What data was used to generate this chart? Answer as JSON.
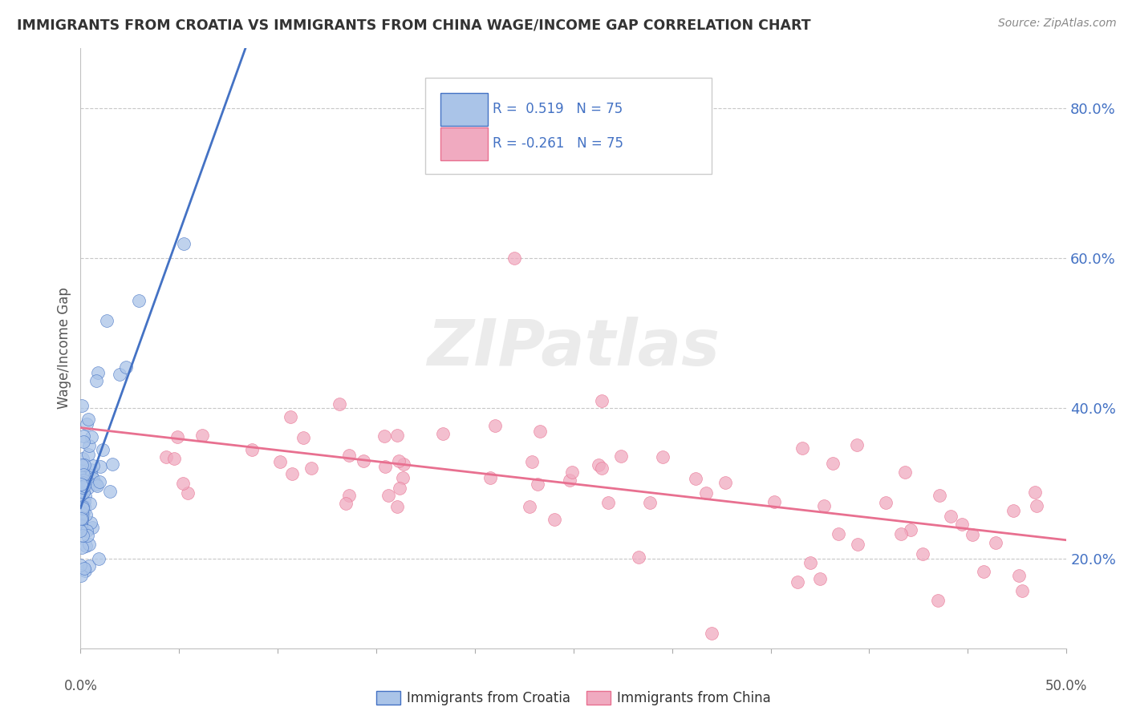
{
  "title": "IMMIGRANTS FROM CROATIA VS IMMIGRANTS FROM CHINA WAGE/INCOME GAP CORRELATION CHART",
  "source": "Source: ZipAtlas.com",
  "xlabel_croatia": "Immigrants from Croatia",
  "xlabel_china": "Immigrants from China",
  "ylabel": "Wage/Income Gap",
  "xlim": [
    0.0,
    0.5
  ],
  "ylim": [
    0.08,
    0.88
  ],
  "yticks": [
    0.2,
    0.4,
    0.6,
    0.8
  ],
  "ytick_labels": [
    "20.0%",
    "40.0%",
    "60.0%",
    "80.0%"
  ],
  "xtick_left_label": "0.0%",
  "xtick_right_label": "50.0%",
  "R_croatia": 0.519,
  "N_croatia": 75,
  "R_china": -0.261,
  "N_china": 75,
  "color_croatia": "#aac4e8",
  "color_china": "#f0aac0",
  "line_color_croatia": "#4472c4",
  "line_color_china": "#e87090",
  "watermark": "ZIPatlas",
  "background_color": "#ffffff",
  "grid_color": "#c8c8c8",
  "ytick_color": "#4472c4",
  "title_color": "#333333",
  "source_color": "#888888"
}
